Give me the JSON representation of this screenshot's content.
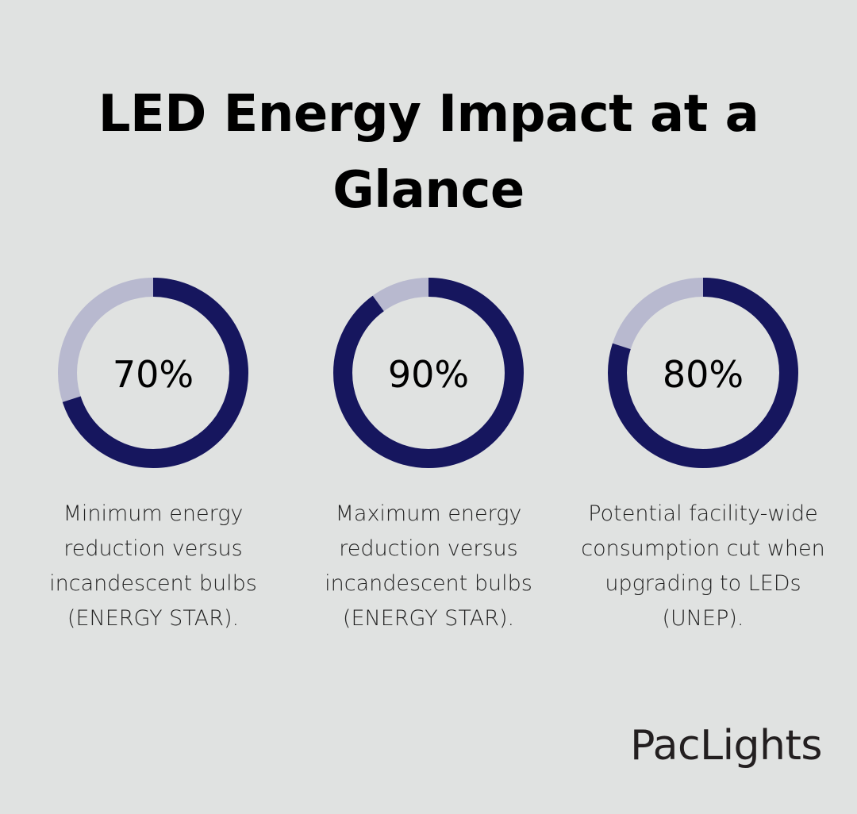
{
  "title": "LED Energy Impact at a Glance",
  "colors": {
    "background": "#e0e2e1",
    "filled": "#16165e",
    "remaining": "#b8b9cf"
  },
  "chart_data": {
    "type": "pie",
    "variant": "donut",
    "items": [
      {
        "value": 70,
        "label": "70%",
        "description": "Minimum energy reduction versus incandescent bulbs (ENERGY STAR)."
      },
      {
        "value": 90,
        "label": "90%",
        "description": "Maximum energy reduction versus incandescent bulbs (ENERGY STAR)."
      },
      {
        "value": 80,
        "label": "80%",
        "description": "Potential facility-wide consumption cut when upgrading to LEDs (UNEP)."
      }
    ]
  },
  "logo": "PacLights"
}
